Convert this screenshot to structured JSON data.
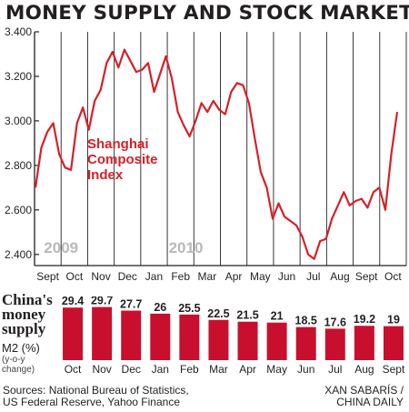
{
  "title": "MONEY SUPPLY AND STOCK MARKET",
  "colors": {
    "series": "#d6202a",
    "bar": "#c8102e",
    "grid": "#222222"
  },
  "chart_data": [
    {
      "type": "line",
      "title": "",
      "series": [
        {
          "name": "Shanghai Composite Index",
          "name_lines": [
            "Shanghai",
            "Composite",
            "Index"
          ],
          "x": [
            0,
            1,
            2,
            3,
            4,
            5,
            6,
            7,
            8,
            9,
            10,
            11,
            12,
            13,
            14,
            15,
            16,
            17,
            18,
            19,
            20,
            21,
            22,
            23,
            24,
            25,
            26,
            27,
            28,
            29,
            30,
            31,
            32,
            33,
            34,
            35,
            36,
            37,
            38,
            39,
            40,
            41,
            42,
            43,
            44,
            45,
            46,
            47,
            48,
            49,
            50,
            51,
            52,
            53,
            54,
            55,
            56,
            57,
            58,
            59,
            60,
            61
          ],
          "values": [
            2700,
            2880,
            2950,
            2990,
            2850,
            2790,
            2780,
            2990,
            3060,
            2960,
            3090,
            3140,
            3260,
            3310,
            3240,
            3320,
            3270,
            3220,
            3230,
            3260,
            3130,
            3210,
            3290,
            3190,
            3040,
            2980,
            2930,
            3000,
            3080,
            3040,
            3090,
            3050,
            3030,
            3130,
            3170,
            3160,
            3080,
            2920,
            2770,
            2700,
            2560,
            2630,
            2570,
            2550,
            2530,
            2480,
            2400,
            2380,
            2460,
            2470,
            2560,
            2620,
            2680,
            2620,
            2640,
            2650,
            2610,
            2680,
            2700,
            2600,
            2850,
            3040
          ]
        }
      ],
      "x_labels": [
        "Sept",
        "Oct",
        "Nov",
        "Dec",
        "Jan",
        "Feb",
        "Mar",
        "Apr",
        "May",
        "Jun",
        "Jul",
        "Aug",
        "Sept",
        "Oct"
      ],
      "year_labels": [
        "2009",
        "2010"
      ],
      "yticks": [
        "2.400",
        "2.600",
        "2.800",
        "3.000",
        "3.200",
        "3.400"
      ],
      "ylim": [
        2350,
        3400
      ],
      "grid": "vertical"
    },
    {
      "type": "bar",
      "title_lines": [
        "China's",
        "money",
        "supply"
      ],
      "ylabel": "M2 (%)",
      "note_lines": [
        "(y-o-y",
        "change)"
      ],
      "categories": [
        "Oct",
        "Nov",
        "Dec",
        "Jan",
        "Feb",
        "Mar",
        "Apr",
        "May",
        "Jun",
        "Jul",
        "Aug",
        "Sept"
      ],
      "values": [
        29.4,
        29.7,
        27.7,
        26,
        25.5,
        22.5,
        21.5,
        21,
        18.5,
        17.6,
        19.2,
        19
      ],
      "ylim": [
        0,
        30
      ]
    }
  ],
  "footer": {
    "sources_lines": [
      "Sources: National Bureau of Statistics,",
      "US Federal Reserve, Yahoo Finance"
    ],
    "credit_lines": [
      "XAN SABARÍS /",
      "CHINA DAILY"
    ]
  }
}
